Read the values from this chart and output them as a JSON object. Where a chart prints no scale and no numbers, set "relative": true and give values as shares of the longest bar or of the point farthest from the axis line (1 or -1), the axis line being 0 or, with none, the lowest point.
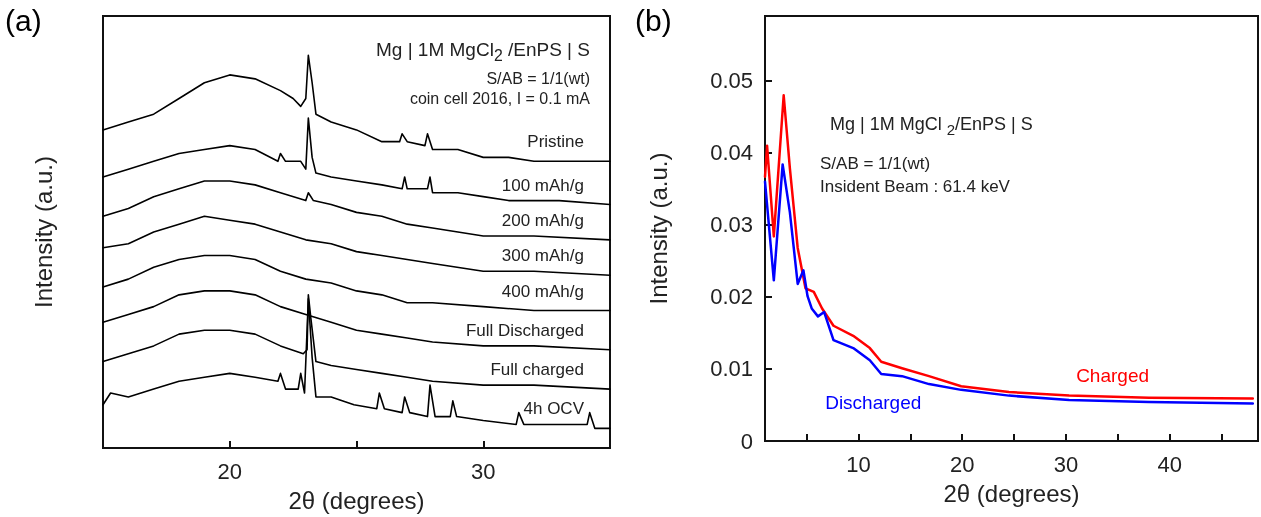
{
  "chart_data": [
    {
      "type": "line",
      "title": "(a)",
      "xlabel": "2θ (degrees)",
      "ylabel": "Intensity (a.u.)",
      "relative": true,
      "xlim": [
        15,
        35
      ],
      "xticks": [
        20,
        {
          "value": 25,
          "label": null
        },
        30
      ],
      "legend": false,
      "grid": false,
      "annotations": [
        "Mg | 1M MgCl$_{2}$ /EnPS | S",
        "S/AB = 1/1(wt)",
        "coin cell 2016,  I = 0.1 mA"
      ],
      "series": [
        {
          "name": "Pristine",
          "color": "#000000",
          "x": [
            15,
            16,
            17,
            18,
            19,
            20,
            21,
            22,
            22.5,
            22.8,
            23.0,
            23.1,
            23.25,
            23.4,
            24,
            25,
            26,
            26.7,
            26.8,
            27,
            27.7,
            27.8,
            28,
            29,
            30,
            31,
            32,
            33,
            34,
            35
          ],
          "values": [
            0.81,
            0.83,
            0.85,
            0.89,
            0.93,
            0.95,
            0.94,
            0.91,
            0.89,
            0.87,
            0.89,
            1.0,
            0.93,
            0.85,
            0.83,
            0.81,
            0.78,
            0.78,
            0.8,
            0.78,
            0.77,
            0.8,
            0.76,
            0.76,
            0.74,
            0.74,
            0.73,
            0.73,
            0.73,
            0.73
          ]
        },
        {
          "name": "100 mAh/g",
          "color": "#000000",
          "x": [
            15,
            16,
            17,
            18,
            19,
            20,
            21,
            21.9,
            22,
            22.2,
            22.8,
            23.0,
            23.1,
            23.25,
            23.4,
            24,
            25,
            26,
            26.8,
            26.9,
            27,
            27.8,
            27.9,
            28,
            29,
            30,
            31,
            32,
            33,
            35
          ],
          "values": [
            0.69,
            0.71,
            0.73,
            0.75,
            0.76,
            0.77,
            0.76,
            0.73,
            0.75,
            0.73,
            0.73,
            0.71,
            0.84,
            0.74,
            0.7,
            0.69,
            0.68,
            0.67,
            0.66,
            0.69,
            0.66,
            0.66,
            0.69,
            0.65,
            0.65,
            0.64,
            0.63,
            0.63,
            0.63,
            0.62
          ]
        },
        {
          "name": "200 mAh/g",
          "color": "#000000",
          "x": [
            15,
            16,
            17,
            18,
            19,
            20,
            21,
            22,
            23,
            23.1,
            23.3,
            24,
            25,
            26,
            27,
            28,
            29,
            30,
            32,
            35
          ],
          "values": [
            0.59,
            0.61,
            0.64,
            0.66,
            0.68,
            0.68,
            0.67,
            0.65,
            0.63,
            0.65,
            0.63,
            0.62,
            0.6,
            0.59,
            0.57,
            0.56,
            0.55,
            0.54,
            0.54,
            0.53
          ]
        },
        {
          "name": "300 mAh/g",
          "color": "#000000",
          "x": [
            15,
            16,
            17,
            18,
            19,
            20,
            21,
            22,
            23,
            24,
            25,
            26,
            27,
            28,
            30,
            32,
            35
          ],
          "values": [
            0.51,
            0.52,
            0.55,
            0.57,
            0.59,
            0.58,
            0.57,
            0.55,
            0.53,
            0.52,
            0.5,
            0.49,
            0.48,
            0.47,
            0.45,
            0.45,
            0.44
          ]
        },
        {
          "name": "400 mAh/g",
          "color": "#000000",
          "x": [
            15,
            16,
            17,
            18,
            19,
            20,
            21,
            22,
            23,
            24,
            25,
            26,
            27,
            28,
            30,
            32,
            35
          ],
          "values": [
            0.41,
            0.43,
            0.46,
            0.48,
            0.49,
            0.49,
            0.48,
            0.45,
            0.43,
            0.42,
            0.4,
            0.39,
            0.37,
            0.37,
            0.36,
            0.35,
            0.35
          ]
        },
        {
          "name": "Full Discharged",
          "color": "#000000",
          "x": [
            15,
            16,
            17,
            18,
            19,
            20,
            21,
            22,
            23,
            24,
            25,
            26,
            27,
            28,
            30,
            32,
            35
          ],
          "values": [
            0.32,
            0.34,
            0.36,
            0.39,
            0.4,
            0.4,
            0.39,
            0.36,
            0.34,
            0.32,
            0.3,
            0.29,
            0.28,
            0.27,
            0.26,
            0.26,
            0.25
          ]
        },
        {
          "name": "Full charged",
          "color": "#000000",
          "x": [
            15,
            16,
            17,
            18,
            19,
            20,
            21,
            22,
            22.9,
            23.05,
            23.1,
            23.2,
            23.4,
            24,
            25,
            26,
            27,
            28,
            30,
            32,
            35
          ],
          "values": [
            0.22,
            0.24,
            0.26,
            0.29,
            0.3,
            0.3,
            0.29,
            0.26,
            0.24,
            0.25,
            0.39,
            0.33,
            0.22,
            0.21,
            0.2,
            0.19,
            0.18,
            0.17,
            0.16,
            0.16,
            0.15
          ]
        },
        {
          "name": "4h OCV",
          "color": "#000000",
          "x": [
            15,
            15.3,
            16,
            17,
            18,
            19,
            20,
            21,
            21.9,
            22.0,
            22.2,
            22.7,
            22.8,
            22.95,
            23.1,
            23.25,
            23.4,
            24,
            24.9,
            25.8,
            25.9,
            26.1,
            26.8,
            26.9,
            27.1,
            27.8,
            27.9,
            28.1,
            28.7,
            28.8,
            28.95,
            30,
            31.3,
            31.4,
            31.6,
            33,
            34.1,
            34.2,
            34.4,
            35
          ],
          "values": [
            0.11,
            0.14,
            0.13,
            0.15,
            0.17,
            0.18,
            0.19,
            0.18,
            0.17,
            0.19,
            0.15,
            0.15,
            0.19,
            0.14,
            0.38,
            0.23,
            0.13,
            0.13,
            0.11,
            0.1,
            0.14,
            0.1,
            0.09,
            0.13,
            0.09,
            0.08,
            0.16,
            0.08,
            0.08,
            0.12,
            0.08,
            0.07,
            0.06,
            0.09,
            0.06,
            0.06,
            0.06,
            0.09,
            0.05,
            0.05
          ]
        }
      ]
    },
    {
      "type": "line",
      "title": "(b)",
      "xlabel": "2θ (degrees)",
      "ylabel": "Intensity (a.u.)",
      "xlim": [
        1,
        48.5
      ],
      "ylim": [
        0,
        0.059
      ],
      "xticks": [
        {
          "value": 5,
          "label": null
        },
        10,
        {
          "value": 15,
          "label": null
        },
        20,
        {
          "value": 25,
          "label": null
        },
        30,
        {
          "value": 35,
          "label": null
        },
        40,
        {
          "value": 45,
          "label": null
        }
      ],
      "yticks": [
        0,
        0.01,
        0.02,
        0.03,
        0.04,
        0.05
      ],
      "legend": false,
      "grid": false,
      "annotations": [
        "Mg | 1M MgCl $_{2}$/EnPS | S",
        "S/AB = 1/1(wt)",
        "Insident Beam : 61.4 keV"
      ],
      "series": [
        {
          "name": "Charged",
          "color": "#ff0000",
          "x": [
            1,
            1.2,
            1.85,
            2.8,
            3.4,
            4.15,
            4.9,
            5.7,
            6.5,
            7.6,
            9.5,
            11.1,
            12.2,
            14.2,
            16.8,
            19.9,
            24.5,
            30.3,
            38,
            48
          ],
          "values": [
            0.0367,
            0.041,
            0.0284,
            0.048,
            0.0378,
            0.0268,
            0.0212,
            0.0207,
            0.0184,
            0.016,
            0.0146,
            0.0129,
            0.011,
            0.0101,
            0.009,
            0.0076,
            0.0068,
            0.0063,
            0.006,
            0.0059
          ]
        },
        {
          "name": "Discharged",
          "color": "#0000ff",
          "x": [
            1,
            1.85,
            2.7,
            3.4,
            4.15,
            4.7,
            5.1,
            5.5,
            6.1,
            6.7,
            7.6,
            9.5,
            11.1,
            12.2,
            14.2,
            16.8,
            19.9,
            24.5,
            30.3,
            38,
            48
          ],
          "values": [
            0.036,
            0.0223,
            0.0384,
            0.0317,
            0.0218,
            0.0237,
            0.0201,
            0.0184,
            0.0173,
            0.0179,
            0.014,
            0.0129,
            0.0112,
            0.0093,
            0.009,
            0.0079,
            0.0071,
            0.0063,
            0.0057,
            0.0054,
            0.0052
          ]
        }
      ]
    }
  ]
}
